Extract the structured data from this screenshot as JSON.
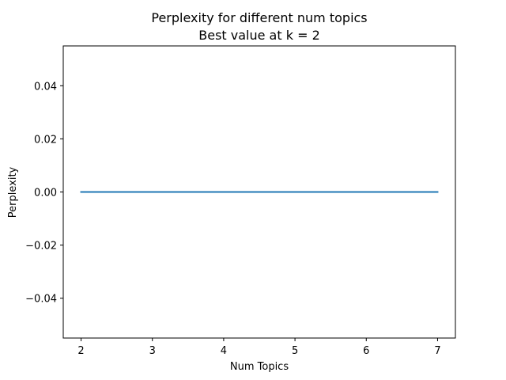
{
  "chart_data": {
    "type": "line",
    "title": "Perplexity for different num topics",
    "subtitle": "Best value at k = 2",
    "xlabel": "Num Topics",
    "ylabel": "Perplexity",
    "x": [
      2,
      3,
      4,
      5,
      6,
      7
    ],
    "series": [
      {
        "values": [
          0,
          0,
          0,
          0,
          0,
          0
        ],
        "color": "#1f77b4"
      }
    ],
    "xlim": [
      1.75,
      7.25
    ],
    "ylim": [
      -0.055,
      0.055
    ],
    "xticks": [
      2,
      3,
      4,
      5,
      6,
      7
    ],
    "xtick_labels": [
      "2",
      "3",
      "4",
      "5",
      "6",
      "7"
    ],
    "yticks": [
      -0.04,
      -0.02,
      0.0,
      0.02,
      0.04
    ],
    "ytick_labels": [
      "−0.04",
      "−0.02",
      "0.00",
      "0.02",
      "0.04"
    ],
    "grid": false,
    "legend": "none"
  }
}
